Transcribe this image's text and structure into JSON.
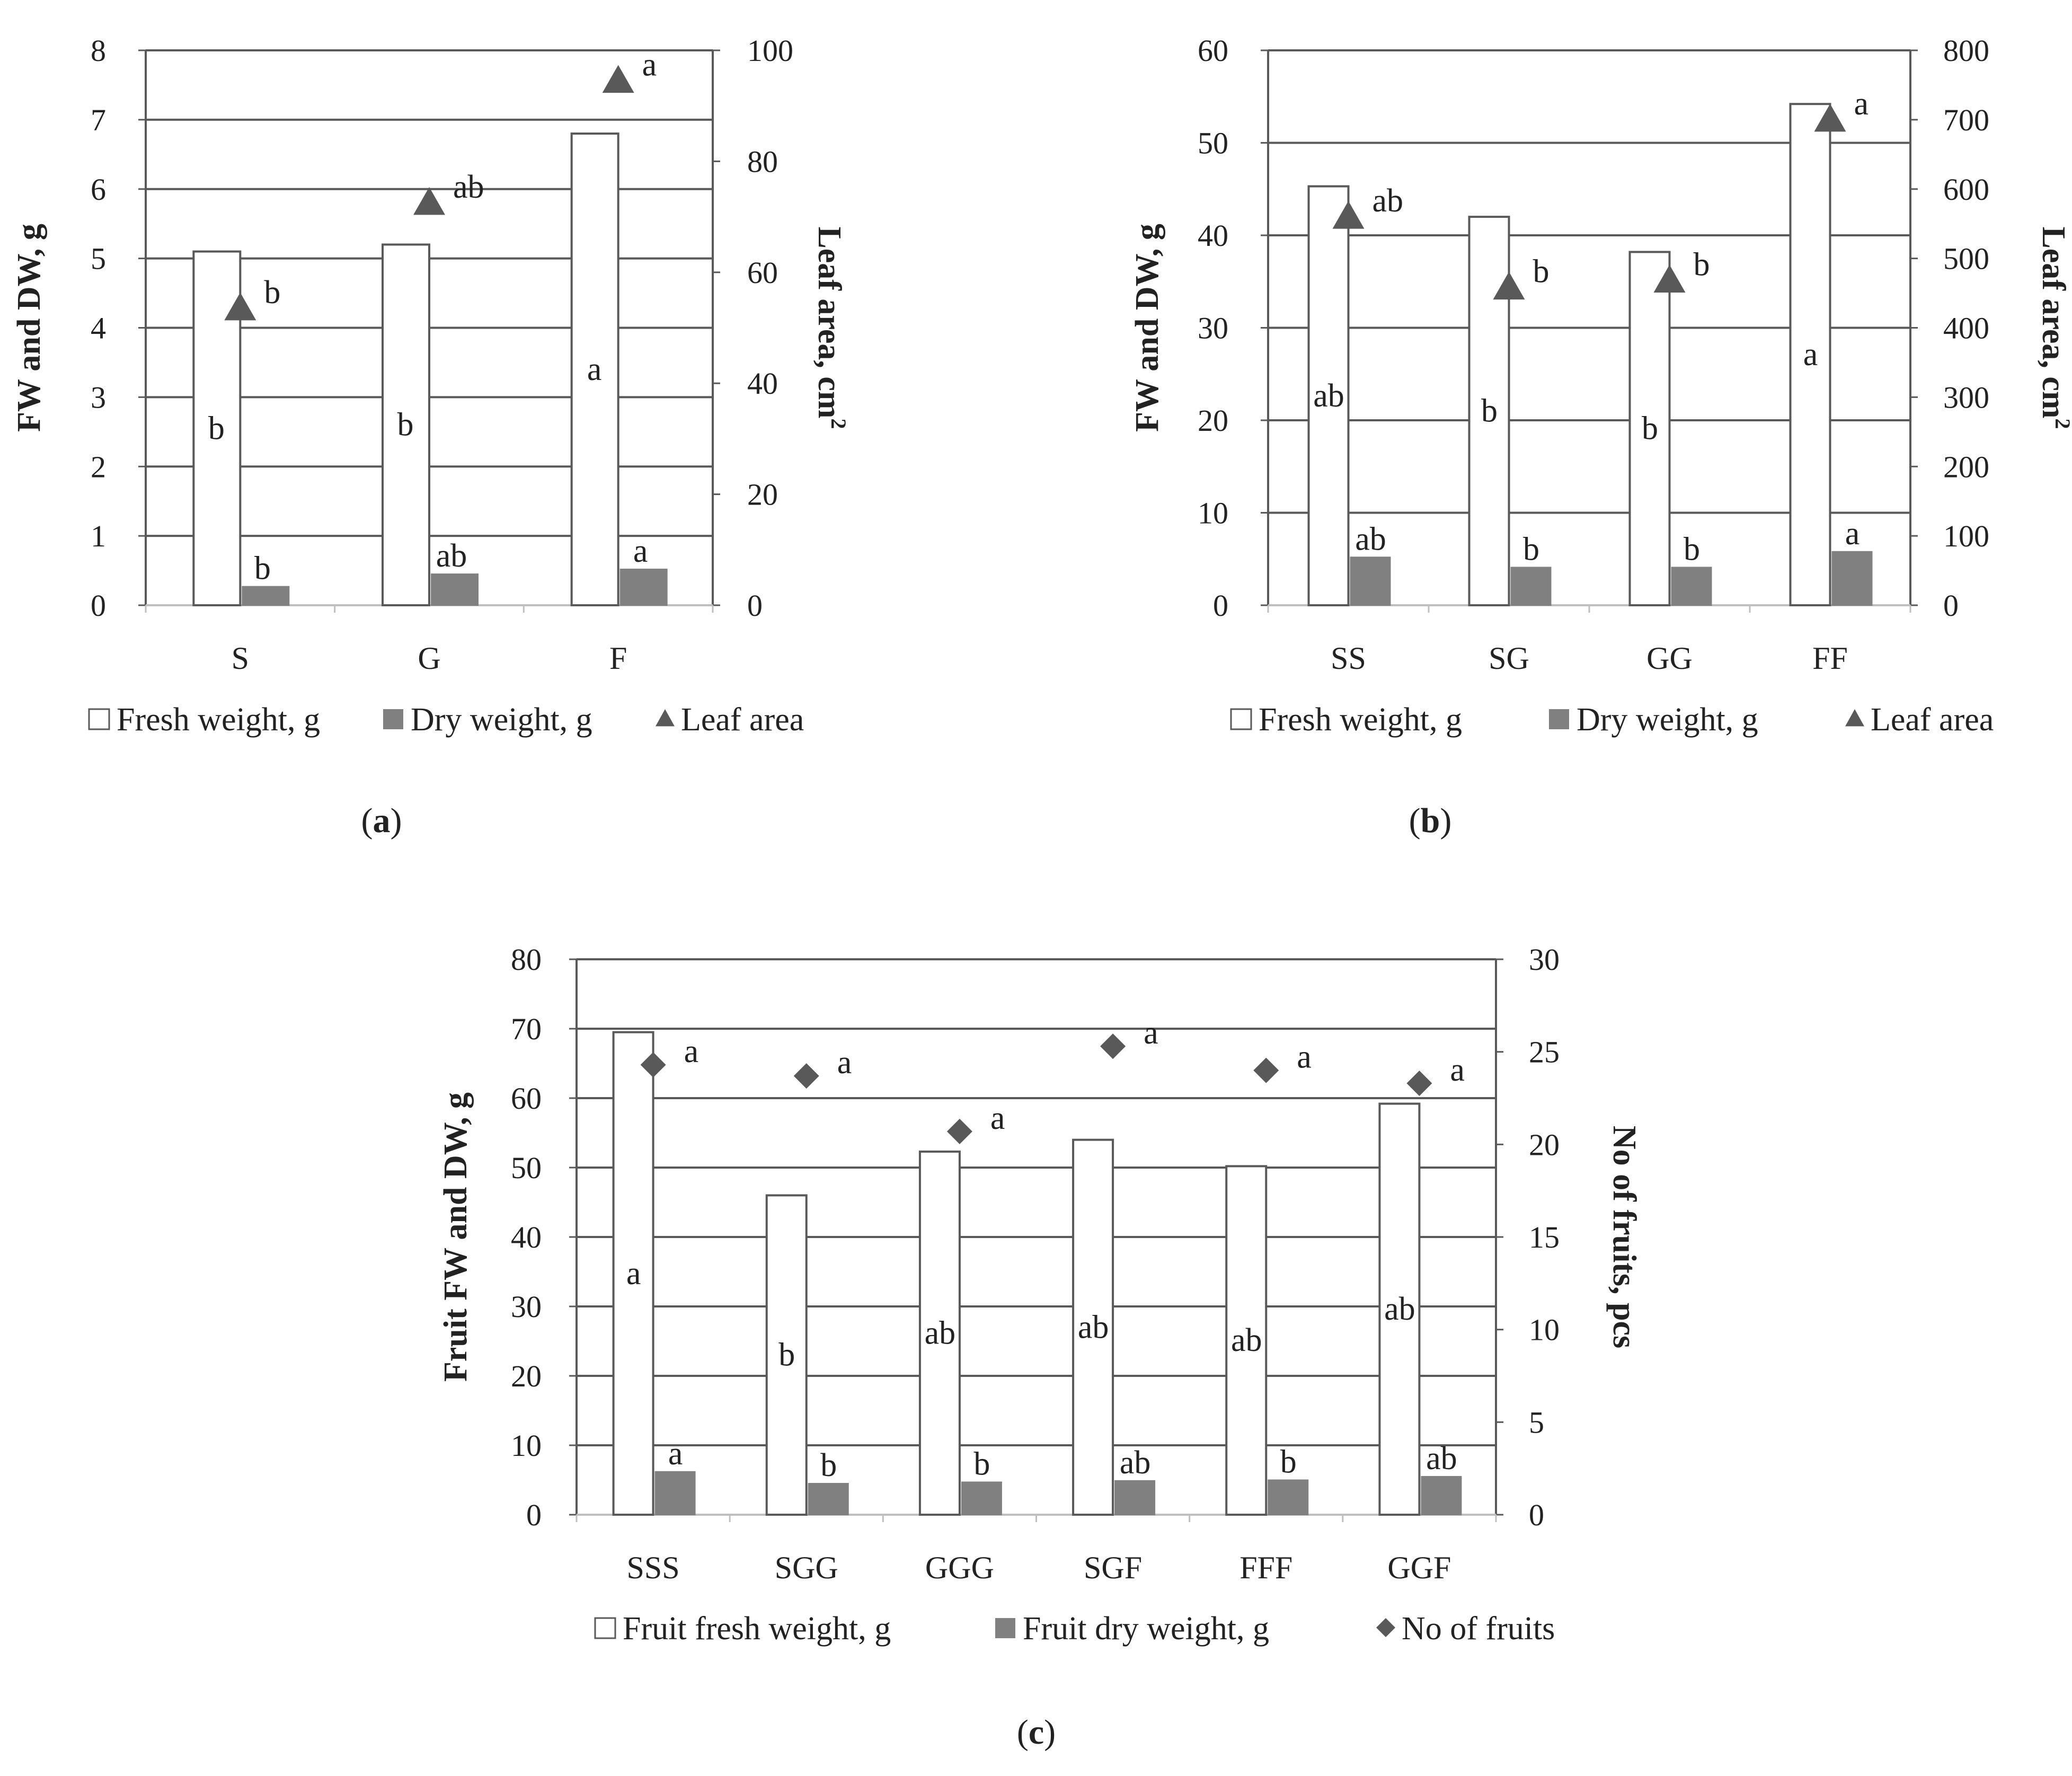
{
  "chart_data": [
    {
      "type": "bar",
      "panel_label": "(a)",
      "panel_letter": "a",
      "categories": [
        "S",
        "G",
        "F"
      ],
      "series": [
        {
          "name": "Fresh weight, g",
          "axis": "left",
          "values": [
            5.1,
            5.2,
            6.8
          ],
          "sig": [
            "b",
            "b",
            "a"
          ]
        },
        {
          "name": "Dry weight, g",
          "axis": "left",
          "values": [
            0.27,
            0.45,
            0.52
          ],
          "sig": [
            "b",
            "ab",
            "a"
          ]
        },
        {
          "name": "Leaf area",
          "axis": "right",
          "marker": "triangle",
          "values": [
            53.5,
            72.5,
            94.5
          ],
          "sig": [
            "b",
            "ab",
            "a"
          ]
        }
      ],
      "ylabel": "FW and DW, g",
      "y2label": "Leaf area, cm",
      "y2label_sup": "2",
      "ylim": [
        0,
        8
      ],
      "yticks": [
        "0",
        "1",
        "2",
        "3",
        "4",
        "5",
        "6",
        "7",
        "8"
      ],
      "y2lim": [
        0,
        100
      ],
      "y2ticks": [
        "0",
        "20",
        "40",
        "60",
        "80",
        "100"
      ],
      "grid": true,
      "legend": "bottom"
    },
    {
      "type": "bar",
      "panel_label": "(b)",
      "panel_letter": "b",
      "categories": [
        "SS",
        "SG",
        "GG",
        "FF"
      ],
      "series": [
        {
          "name": "Fresh weight, g",
          "axis": "left",
          "values": [
            45.3,
            42.0,
            38.2,
            54.2
          ],
          "sig": [
            "ab",
            "b",
            "b",
            "a"
          ]
        },
        {
          "name": "Dry weight, g",
          "axis": "left",
          "values": [
            5.2,
            4.1,
            4.1,
            5.8
          ],
          "sig": [
            "ab",
            "b",
            "b",
            "a"
          ]
        },
        {
          "name": "Leaf area",
          "axis": "right",
          "marker": "triangle",
          "values": [
            560,
            458,
            468,
            700
          ],
          "sig": [
            "ab",
            "b",
            "b",
            "a"
          ]
        }
      ],
      "ylabel": "FW and DW, g",
      "y2label": "Leaf area, cm",
      "y2label_sup": "2",
      "ylim": [
        0,
        60
      ],
      "yticks": [
        "0",
        "10",
        "20",
        "30",
        "40",
        "50",
        "60"
      ],
      "y2lim": [
        0,
        800
      ],
      "y2ticks": [
        "0",
        "100",
        "200",
        "300",
        "400",
        "500",
        "600",
        "700",
        "800"
      ],
      "grid": true,
      "legend": "bottom"
    },
    {
      "type": "bar",
      "panel_label": "(c)",
      "panel_letter": "c",
      "categories": [
        "SSS",
        "SGG",
        "GGG",
        "SGF",
        "FFF",
        "GGF"
      ],
      "series": [
        {
          "name": "Fruit fresh weight, g",
          "axis": "left",
          "values": [
            69.5,
            46.0,
            52.3,
            54.0,
            50.2,
            59.2
          ],
          "sig": [
            "a",
            "b",
            "ab",
            "ab",
            "ab",
            "ab"
          ]
        },
        {
          "name": "Fruit dry weight, g",
          "axis": "left",
          "values": [
            6.2,
            4.5,
            4.7,
            4.9,
            5.0,
            5.5
          ],
          "sig": [
            "a",
            "b",
            "b",
            "ab",
            "b",
            "ab"
          ]
        },
        {
          "name": "No of fruits",
          "axis": "right",
          "marker": "diamond",
          "values": [
            24.3,
            23.7,
            20.7,
            25.3,
            24.0,
            23.3
          ],
          "sig": [
            "a",
            "a",
            "a",
            "a",
            "a",
            "a"
          ]
        }
      ],
      "ylabel": "Fruit FW and DW, g",
      "y2label": "No of fruits, pcs",
      "ylim": [
        0,
        80
      ],
      "yticks": [
        "0",
        "10",
        "20",
        "30",
        "40",
        "50",
        "60",
        "70",
        "80"
      ],
      "y2lim": [
        0,
        30
      ],
      "y2ticks": [
        "0",
        "5",
        "10",
        "15",
        "20",
        "25",
        "30"
      ],
      "grid": true,
      "legend": "bottom"
    }
  ],
  "colors": {
    "fresh_fill": "#ffffff",
    "bar_stroke": "#595959",
    "dry_fill": "#808080",
    "marker": "#595959",
    "grid": "#595959",
    "text": "#222222"
  }
}
